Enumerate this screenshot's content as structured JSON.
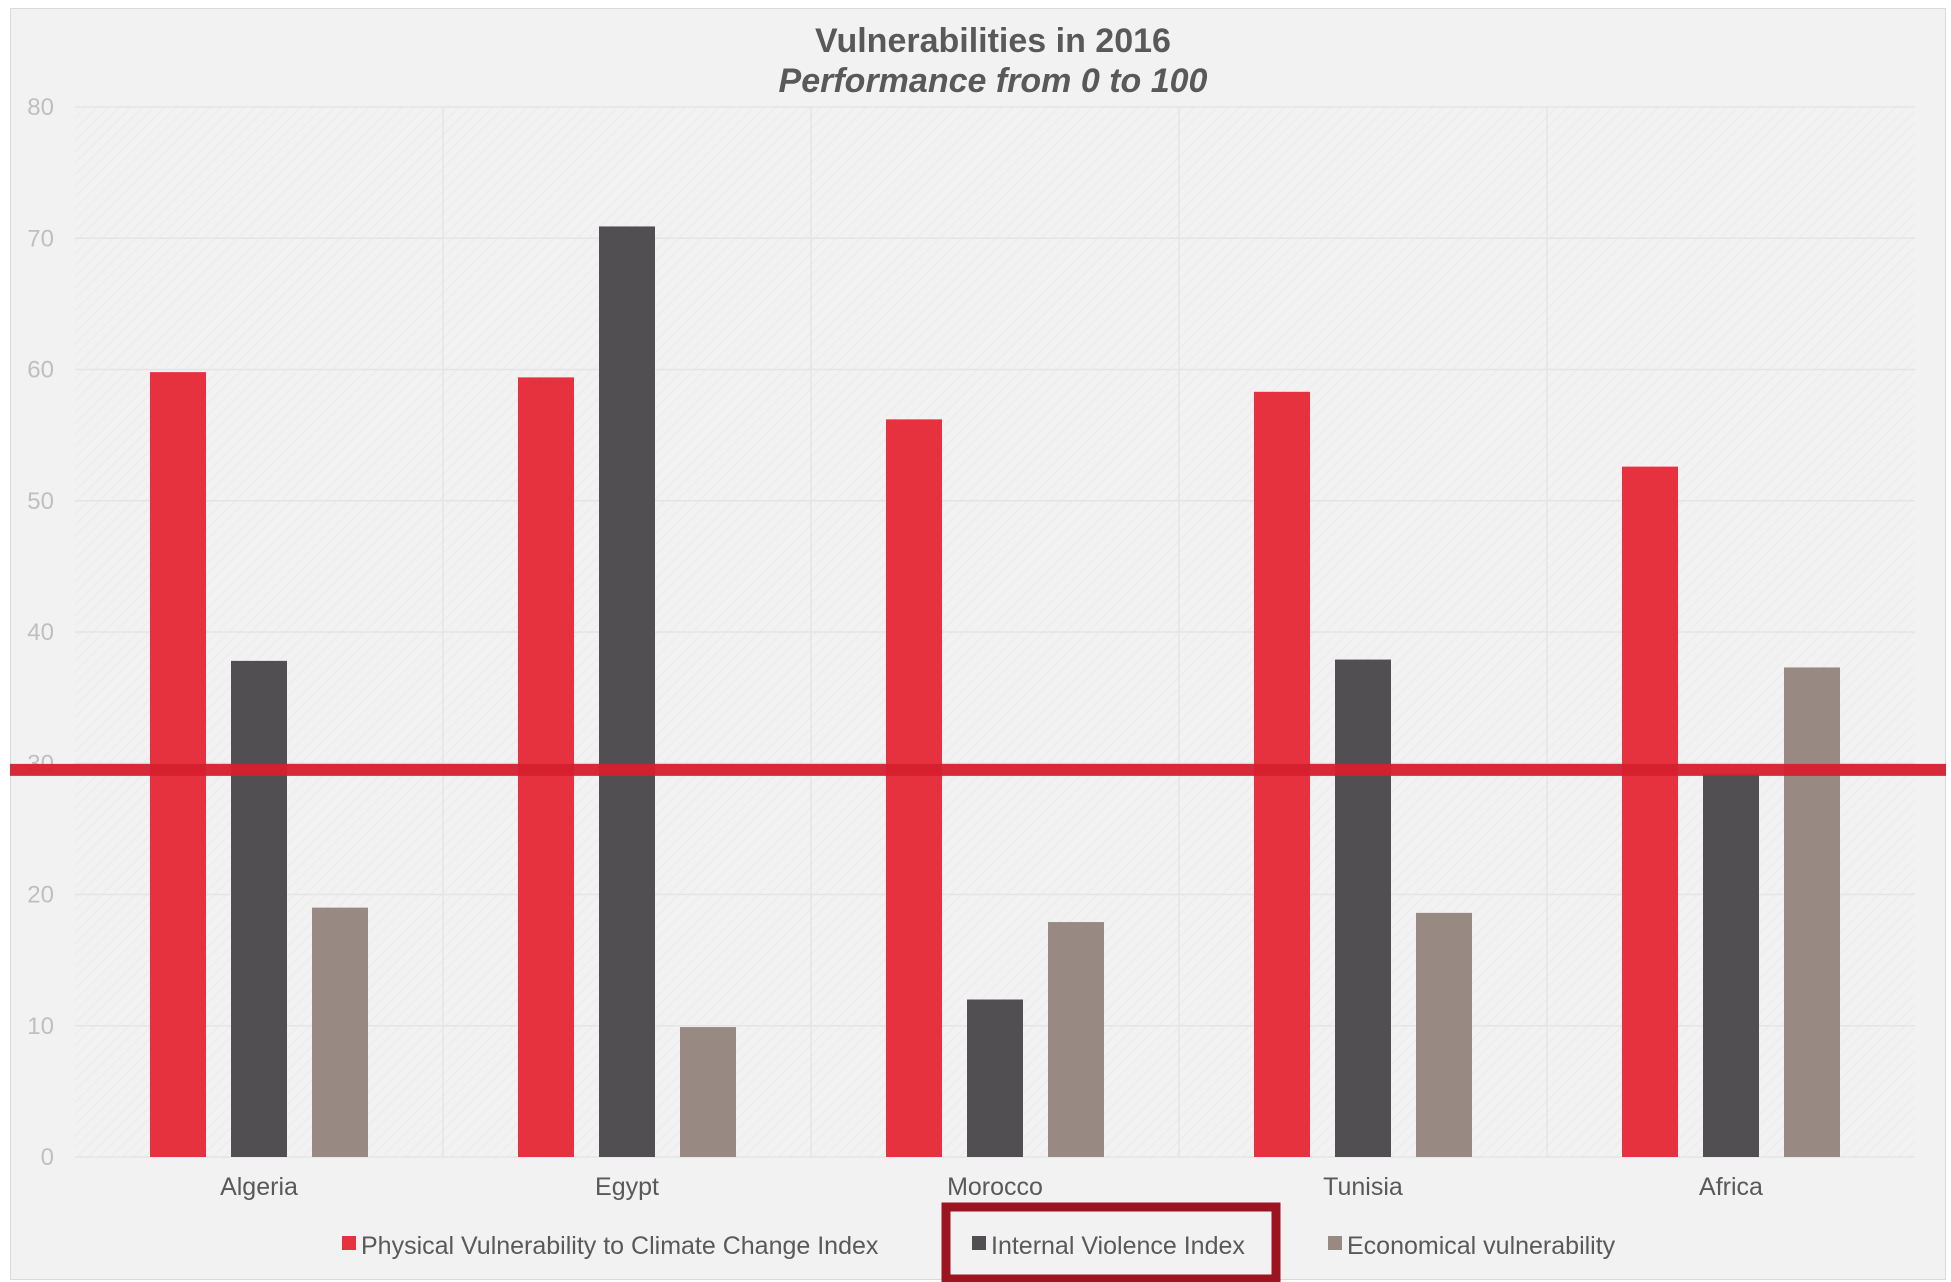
{
  "chart_data": {
    "type": "bar",
    "title": "Vulnerabilities in 2016",
    "subtitle": "Performance from  0  to 100",
    "categories": [
      "Algeria",
      "Egypt",
      "Morocco",
      "Tunisia",
      "Africa"
    ],
    "series": [
      {
        "name": "Physical Vulnerability to Climate Change Index",
        "color": "#e5323e",
        "values": [
          59.8,
          59.4,
          56.2,
          58.3,
          52.6
        ]
      },
      {
        "name": "Internal Violence Index",
        "color": "#524f53",
        "values": [
          37.8,
          70.9,
          12.0,
          37.9,
          29.2
        ]
      },
      {
        "name": "Economical vulnerability",
        "color": "#988a82",
        "values": [
          19.0,
          9.9,
          17.9,
          18.6,
          37.3
        ]
      }
    ],
    "ylim": [
      0,
      80
    ],
    "yticks": [
      0,
      10,
      20,
      30,
      40,
      50,
      60,
      70,
      80
    ],
    "grid": true,
    "legend_position": "bottom",
    "reference_line": {
      "value": 29.5,
      "color": "#d61f2f"
    },
    "highlighted_legend_entry": "Internal Violence Index",
    "highlight_color": "#9b1420"
  }
}
